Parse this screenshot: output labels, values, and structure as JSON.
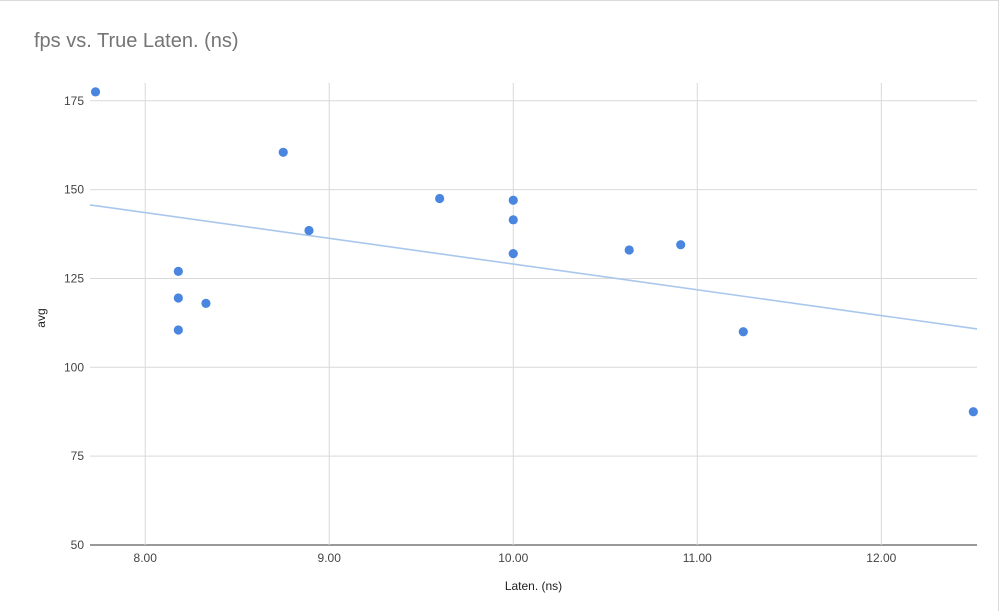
{
  "chart_data": {
    "type": "scatter",
    "title": "fps vs. True Laten. (ns)",
    "xlabel": "Laten. (ns)",
    "ylabel": "avg",
    "xlim": [
      7.7,
      12.52
    ],
    "ylim": [
      50,
      180
    ],
    "x_ticks": [
      8.0,
      9.0,
      10.0,
      11.0,
      12.0
    ],
    "x_tick_labels": [
      "8.00",
      "9.00",
      "10.00",
      "11.00",
      "12.00"
    ],
    "y_ticks": [
      50,
      75,
      100,
      125,
      150,
      175
    ],
    "y_tick_labels": [
      "50",
      "75",
      "100",
      "125",
      "150",
      "175"
    ],
    "grid": true,
    "series": [
      {
        "points": [
          {
            "x": 7.73,
            "y": 177.5
          },
          {
            "x": 8.18,
            "y": 127
          },
          {
            "x": 8.18,
            "y": 119.5
          },
          {
            "x": 8.18,
            "y": 110.5
          },
          {
            "x": 8.33,
            "y": 118
          },
          {
            "x": 8.75,
            "y": 160.5
          },
          {
            "x": 8.89,
            "y": 138.5
          },
          {
            "x": 9.6,
            "y": 147.5
          },
          {
            "x": 10.0,
            "y": 147
          },
          {
            "x": 10.0,
            "y": 141.5
          },
          {
            "x": 10.0,
            "y": 132
          },
          {
            "x": 10.63,
            "y": 133
          },
          {
            "x": 10.91,
            "y": 134.5
          },
          {
            "x": 11.25,
            "y": 110
          },
          {
            "x": 12.5,
            "y": 87.5
          }
        ]
      }
    ],
    "trendline": {
      "x": [
        7.7,
        12.52
      ],
      "y": [
        145.7,
        110.8
      ]
    },
    "colors": {
      "points": "#4a86e0",
      "trendline": "#a9c7ec",
      "grid": "#d9d9d9"
    }
  }
}
